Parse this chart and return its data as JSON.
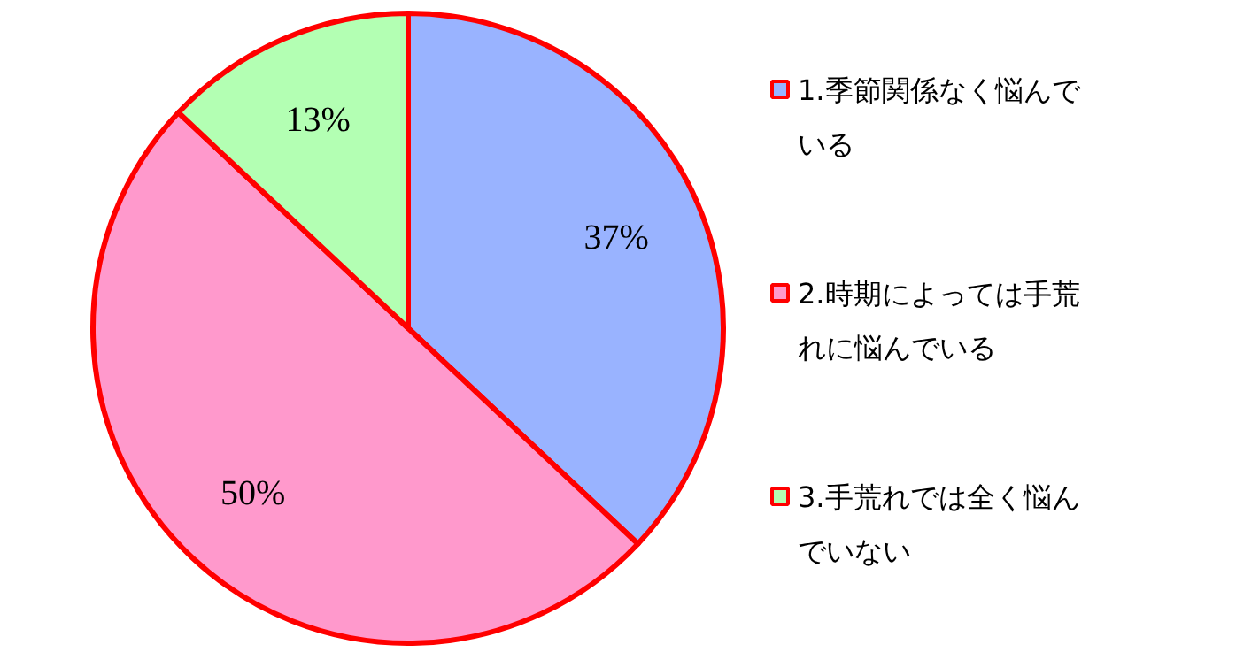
{
  "chart_data": {
    "type": "pie",
    "categories": [
      "1.季節関係なく悩んでいる",
      "2.時期によっては手荒れに悩んでいる",
      "3.手荒れでは全く悩んでいない"
    ],
    "values": [
      37,
      50,
      13
    ],
    "colors": [
      "#99b3ff",
      "#ff99cc",
      "#b3ffb3"
    ],
    "value_labels": [
      "37%",
      "50%",
      "13%"
    ],
    "legend": "right"
  }
}
